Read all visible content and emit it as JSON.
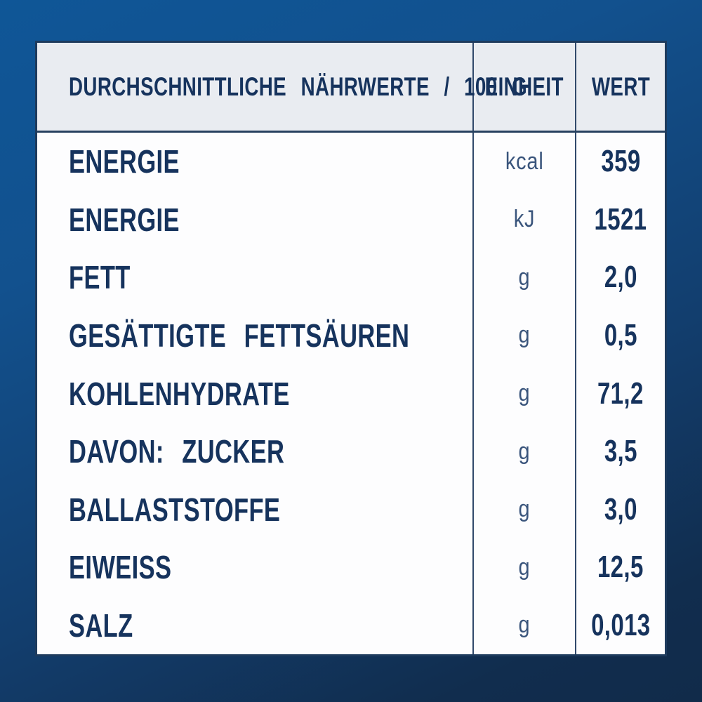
{
  "table": {
    "header": {
      "nutrients_label": "DURCHSCHNITTLICHE NÄHRWERTE / 100 G",
      "unit_label": "EINHEIT",
      "value_label": "WERT"
    },
    "rows": [
      {
        "label": "ENERGIE",
        "unit": "kcal",
        "value": "359"
      },
      {
        "label": "ENERGIE",
        "unit": "kJ",
        "value": "1521"
      },
      {
        "label": "FETT",
        "unit": "g",
        "value": "2,0"
      },
      {
        "label": "GESÄTTIGTE FETTSÄUREN",
        "unit": "g",
        "value": "0,5"
      },
      {
        "label": "KOHLENHYDRATE",
        "unit": "g",
        "value": "71,2"
      },
      {
        "label": "DAVON: ZUCKER",
        "unit": "g",
        "value": "3,5"
      },
      {
        "label": "BALLASTSTOFFE",
        "unit": "g",
        "value": "3,0"
      },
      {
        "label": "EIWEISS",
        "unit": "g",
        "value": "12,5"
      },
      {
        "label": "SALZ",
        "unit": "g",
        "value": "0,013"
      }
    ],
    "colors": {
      "background_top": "#0F5697",
      "background_bottom": "#112B4A",
      "header_background": "#E9ECF1",
      "body_background": "#FDFDFE",
      "text_navy": "#16335D",
      "unit_text": "#3A557C",
      "grid_line": "#31496B"
    }
  }
}
